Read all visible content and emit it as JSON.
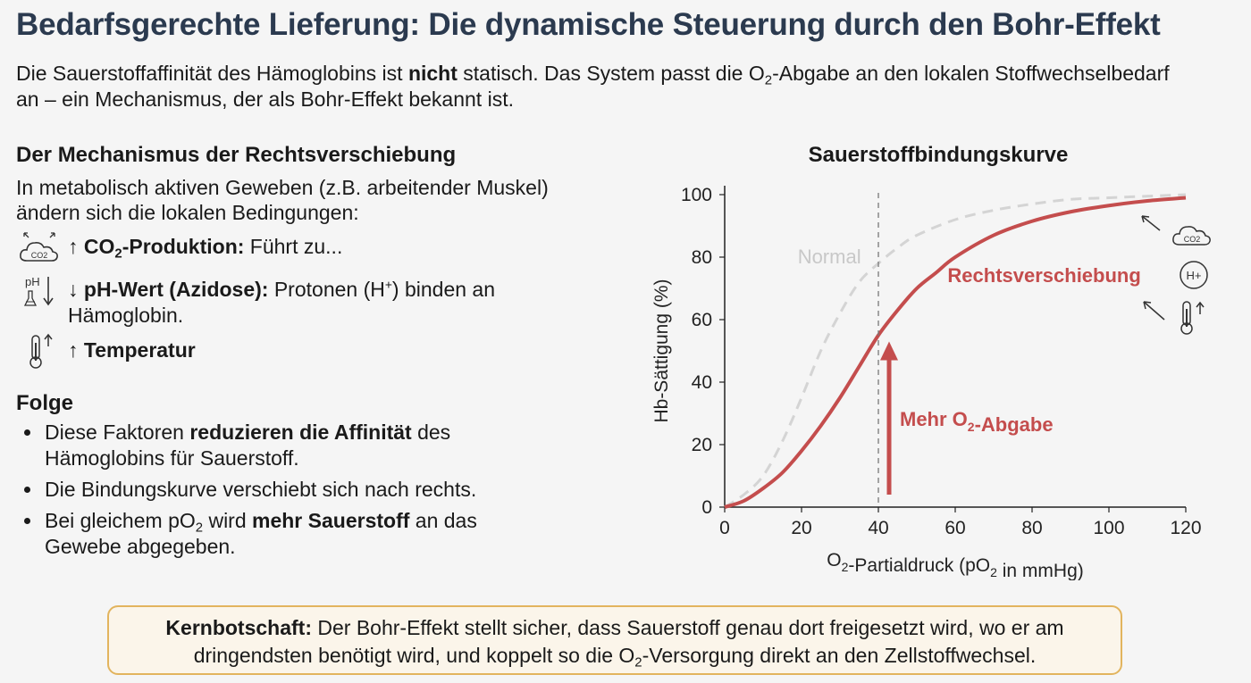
{
  "title": "Bedarfsgerechte Lieferung: Die dynamische Steuerung durch den Bohr-Effekt",
  "intro": {
    "t1": "Die Sauerstoffaffinität des Hämoglobins ist ",
    "t1_bold": "nicht",
    "t2": " statisch. Das System passt die O",
    "t2_sub": "2",
    "t3": "-Abgabe an den lokalen Stoffwechselbedarf an – ein Mechanismus, der als Bohr-Effekt bekannt ist."
  },
  "mechanism": {
    "heading": "Der Mechanismus der Rechtsverschiebung",
    "text": "In metabolisch aktiven Geweben (z.B. arbeitender Muskel) ändern sich die lokalen Bedingungen:",
    "factors": [
      {
        "icon": "co2-cloud-icon",
        "bold_a": "↑ CO",
        "bold_sub": "2",
        "bold_b": "-Produktion:",
        "text": " Führt zu..."
      },
      {
        "icon": "ph-flask-icon",
        "bold": "↓ pH-Wert (Azidose):",
        "text_a": " Protonen (H",
        "text_sup": "+",
        "text_b": ") binden an Hämoglobin."
      },
      {
        "icon": "thermometer-icon",
        "bold": "↑ Temperatur"
      }
    ],
    "icon_labels": {
      "co2": "CO2",
      "ph": "pH",
      "h_plus": "H+"
    }
  },
  "consequence": {
    "heading": "Folge",
    "b1_a": "Diese Faktoren ",
    "b1_bold": "reduzieren die Affinität",
    "b1_b": " des Hämoglobins für Sauerstoff.",
    "b2": "Die Bindungskurve verschiebt sich nach rechts.",
    "b3_a": "Bei gleichem pO",
    "b3_sub": "2",
    "b3_b": " wird ",
    "b3_bold": "mehr Sauerstoff",
    "b3_c": " an das Gewebe abgegeben."
  },
  "chart_data": {
    "type": "line",
    "title": "Sauerstoffbindungskurve",
    "xlabel_a": "O",
    "xlabel_sub1": "2",
    "xlabel_b": "-Partialdruck (pO",
    "xlabel_sub2": "2",
    "xlabel_c": " in mmHg)",
    "ylabel": "Hb-Sättigung (%)",
    "xlim": [
      0,
      120
    ],
    "ylim": [
      0,
      100
    ],
    "xticks": [
      0,
      20,
      40,
      60,
      80,
      100,
      120
    ],
    "yticks": [
      0,
      20,
      40,
      60,
      80,
      100
    ],
    "grid": false,
    "series": [
      {
        "name": "Normal",
        "style": "dashed",
        "color": "#d4d4d4",
        "x": [
          0,
          5,
          10,
          15,
          20,
          25,
          30,
          35,
          40,
          45,
          50,
          60,
          70,
          80,
          90,
          100,
          110,
          120
        ],
        "y": [
          0,
          4,
          10,
          21,
          35,
          50,
          62,
          72,
          78,
          83,
          87,
          92,
          95,
          97,
          98.5,
          99,
          99.5,
          100
        ]
      },
      {
        "name": "Rechtsverschiebung",
        "style": "solid",
        "color": "#c44d4d",
        "x": [
          0,
          5,
          10,
          15,
          20,
          25,
          30,
          35,
          40,
          45,
          50,
          55,
          60,
          70,
          80,
          90,
          100,
          110,
          120
        ],
        "y": [
          0,
          2,
          6,
          11,
          18,
          26,
          35,
          45,
          55,
          63,
          70,
          75,
          80,
          87,
          91.5,
          94.5,
          96.5,
          98,
          99
        ]
      }
    ],
    "marker_x": 40,
    "annotation_a": "Mehr O",
    "annotation_sub": "2",
    "annotation_b": "-Abgabe",
    "annotation_color": "#c44d4d"
  },
  "keymessage": {
    "bold": "Kernbotschaft:",
    "t1": " Der Bohr-Effekt stellt sicher, dass Sauerstoff genau dort freigesetzt wird, wo er am dringendsten benötigt wird, und koppelt so die O",
    "sub": "2",
    "t2": "-Versorgung direkt an den Zellstoffwechsel."
  }
}
